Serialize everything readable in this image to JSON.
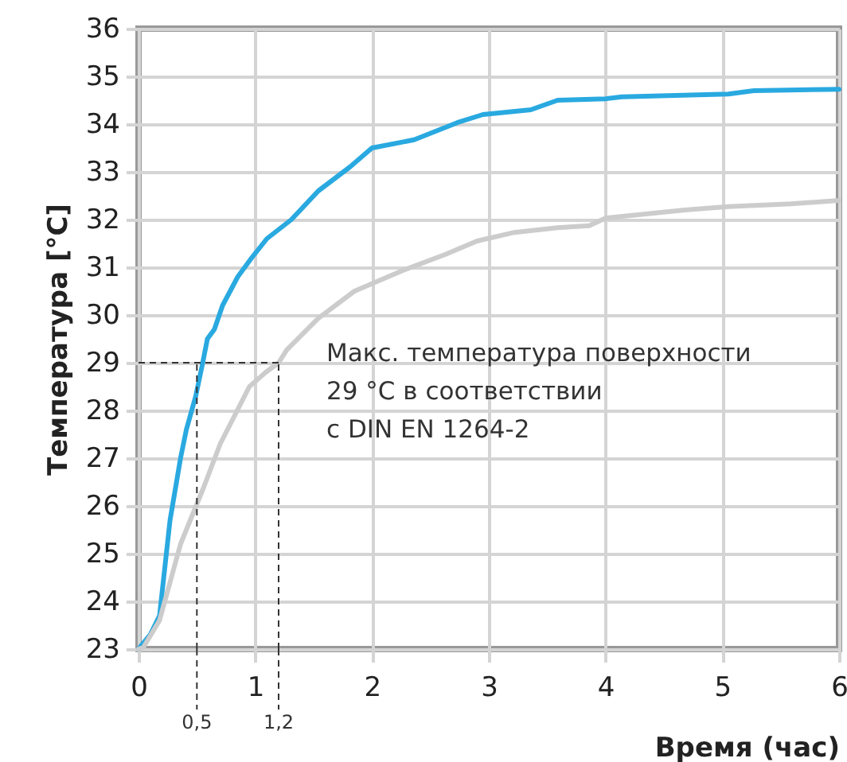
{
  "chart_data": {
    "type": "line",
    "xlabel": "Время (час)",
    "ylabel": "Температура [°C]",
    "xlim": [
      0,
      6
    ],
    "xticks": [
      0,
      1,
      2,
      3,
      4,
      5,
      6
    ],
    "ylim": [
      23,
      36
    ],
    "yticks": [
      23,
      24,
      25,
      26,
      27,
      28,
      29,
      30,
      31,
      32,
      33,
      34,
      35,
      36
    ],
    "grid": true,
    "series": [
      {
        "color": "#29a9e0",
        "x": [
          0,
          0.1,
          0.18,
          0.27,
          0.36,
          0.41,
          0.49,
          0.55,
          0.59,
          0.65,
          0.72,
          0.85,
          0.97,
          1.1,
          1.31,
          1.54,
          1.81,
          2.0,
          2.36,
          2.73,
          2.95,
          3.36,
          3.59,
          4.0,
          4.14,
          5.05,
          5.27,
          6.0
        ],
        "values": [
          23,
          23.3,
          23.7,
          25.7,
          27.0,
          27.6,
          28.3,
          29.0,
          29.5,
          29.7,
          30.2,
          30.8,
          31.2,
          31.6,
          32.0,
          32.6,
          33.1,
          33.5,
          33.67,
          34.03,
          34.2,
          34.3,
          34.5,
          34.53,
          34.57,
          34.63,
          34.7,
          34.73
        ]
      },
      {
        "color": "#cccccc",
        "x": [
          0,
          0.04,
          0.18,
          0.36,
          0.56,
          0.7,
          0.95,
          1.09,
          1.2,
          1.27,
          1.54,
          1.85,
          2.26,
          2.63,
          2.9,
          3.22,
          3.59,
          3.86,
          4.0,
          4.68,
          5.05,
          5.59,
          6.0
        ],
        "values": [
          23,
          23.03,
          23.6,
          25.2,
          26.4,
          27.3,
          28.5,
          28.8,
          29.0,
          29.27,
          29.93,
          30.5,
          30.93,
          31.27,
          31.55,
          31.73,
          31.83,
          31.87,
          32.03,
          32.2,
          32.27,
          32.33,
          32.4
        ]
      }
    ],
    "ref_lines": [
      {
        "axis": "y",
        "value": 29,
        "line_style": "dashed"
      },
      {
        "axis": "x",
        "value": 0.5,
        "label": "0,5",
        "line_style": "dashed"
      },
      {
        "axis": "x",
        "value": 1.2,
        "label": "1,2",
        "line_style": "dashed"
      }
    ],
    "annotations": [
      {
        "text": "Макс. температура поверхности\n29 °C в соответствии\nс DIN EN 1264-2",
        "x": 1.2,
        "y": 29
      }
    ]
  }
}
